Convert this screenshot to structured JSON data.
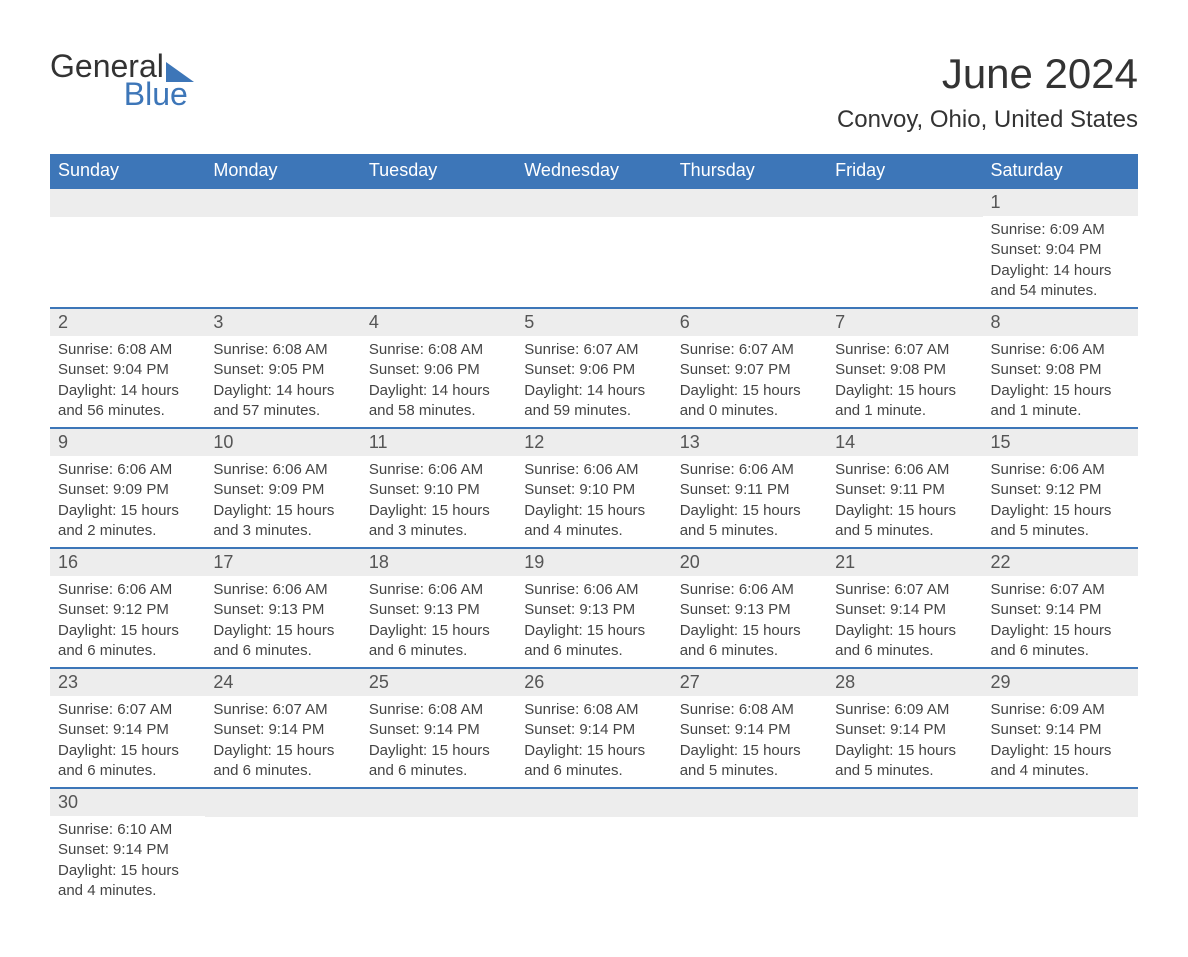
{
  "brand": {
    "name_a": "General",
    "name_b": "Blue"
  },
  "title": "June 2024",
  "location": "Convoy, Ohio, United States",
  "day_headers": [
    "Sunday",
    "Monday",
    "Tuesday",
    "Wednesday",
    "Thursday",
    "Friday",
    "Saturday"
  ],
  "sunrise_label": "Sunrise: ",
  "sunset_label": "Sunset: ",
  "daylight_label": "Daylight: ",
  "colors": {
    "header_bg": "#3d76b8",
    "header_text": "#ffffff",
    "daynum_bg": "#ededed",
    "row_border": "#3d76b8",
    "text": "#333333"
  },
  "weeks": [
    [
      null,
      null,
      null,
      null,
      null,
      null,
      {
        "n": "1",
        "sunrise": "6:09 AM",
        "sunset": "9:04 PM",
        "daylight": "14 hours and 54 minutes."
      }
    ],
    [
      {
        "n": "2",
        "sunrise": "6:08 AM",
        "sunset": "9:04 PM",
        "daylight": "14 hours and 56 minutes."
      },
      {
        "n": "3",
        "sunrise": "6:08 AM",
        "sunset": "9:05 PM",
        "daylight": "14 hours and 57 minutes."
      },
      {
        "n": "4",
        "sunrise": "6:08 AM",
        "sunset": "9:06 PM",
        "daylight": "14 hours and 58 minutes."
      },
      {
        "n": "5",
        "sunrise": "6:07 AM",
        "sunset": "9:06 PM",
        "daylight": "14 hours and 59 minutes."
      },
      {
        "n": "6",
        "sunrise": "6:07 AM",
        "sunset": "9:07 PM",
        "daylight": "15 hours and 0 minutes."
      },
      {
        "n": "7",
        "sunrise": "6:07 AM",
        "sunset": "9:08 PM",
        "daylight": "15 hours and 1 minute."
      },
      {
        "n": "8",
        "sunrise": "6:06 AM",
        "sunset": "9:08 PM",
        "daylight": "15 hours and 1 minute."
      }
    ],
    [
      {
        "n": "9",
        "sunrise": "6:06 AM",
        "sunset": "9:09 PM",
        "daylight": "15 hours and 2 minutes."
      },
      {
        "n": "10",
        "sunrise": "6:06 AM",
        "sunset": "9:09 PM",
        "daylight": "15 hours and 3 minutes."
      },
      {
        "n": "11",
        "sunrise": "6:06 AM",
        "sunset": "9:10 PM",
        "daylight": "15 hours and 3 minutes."
      },
      {
        "n": "12",
        "sunrise": "6:06 AM",
        "sunset": "9:10 PM",
        "daylight": "15 hours and 4 minutes."
      },
      {
        "n": "13",
        "sunrise": "6:06 AM",
        "sunset": "9:11 PM",
        "daylight": "15 hours and 5 minutes."
      },
      {
        "n": "14",
        "sunrise": "6:06 AM",
        "sunset": "9:11 PM",
        "daylight": "15 hours and 5 minutes."
      },
      {
        "n": "15",
        "sunrise": "6:06 AM",
        "sunset": "9:12 PM",
        "daylight": "15 hours and 5 minutes."
      }
    ],
    [
      {
        "n": "16",
        "sunrise": "6:06 AM",
        "sunset": "9:12 PM",
        "daylight": "15 hours and 6 minutes."
      },
      {
        "n": "17",
        "sunrise": "6:06 AM",
        "sunset": "9:13 PM",
        "daylight": "15 hours and 6 minutes."
      },
      {
        "n": "18",
        "sunrise": "6:06 AM",
        "sunset": "9:13 PM",
        "daylight": "15 hours and 6 minutes."
      },
      {
        "n": "19",
        "sunrise": "6:06 AM",
        "sunset": "9:13 PM",
        "daylight": "15 hours and 6 minutes."
      },
      {
        "n": "20",
        "sunrise": "6:06 AM",
        "sunset": "9:13 PM",
        "daylight": "15 hours and 6 minutes."
      },
      {
        "n": "21",
        "sunrise": "6:07 AM",
        "sunset": "9:14 PM",
        "daylight": "15 hours and 6 minutes."
      },
      {
        "n": "22",
        "sunrise": "6:07 AM",
        "sunset": "9:14 PM",
        "daylight": "15 hours and 6 minutes."
      }
    ],
    [
      {
        "n": "23",
        "sunrise": "6:07 AM",
        "sunset": "9:14 PM",
        "daylight": "15 hours and 6 minutes."
      },
      {
        "n": "24",
        "sunrise": "6:07 AM",
        "sunset": "9:14 PM",
        "daylight": "15 hours and 6 minutes."
      },
      {
        "n": "25",
        "sunrise": "6:08 AM",
        "sunset": "9:14 PM",
        "daylight": "15 hours and 6 minutes."
      },
      {
        "n": "26",
        "sunrise": "6:08 AM",
        "sunset": "9:14 PM",
        "daylight": "15 hours and 6 minutes."
      },
      {
        "n": "27",
        "sunrise": "6:08 AM",
        "sunset": "9:14 PM",
        "daylight": "15 hours and 5 minutes."
      },
      {
        "n": "28",
        "sunrise": "6:09 AM",
        "sunset": "9:14 PM",
        "daylight": "15 hours and 5 minutes."
      },
      {
        "n": "29",
        "sunrise": "6:09 AM",
        "sunset": "9:14 PM",
        "daylight": "15 hours and 4 minutes."
      }
    ],
    [
      {
        "n": "30",
        "sunrise": "6:10 AM",
        "sunset": "9:14 PM",
        "daylight": "15 hours and 4 minutes."
      },
      null,
      null,
      null,
      null,
      null,
      null
    ]
  ]
}
